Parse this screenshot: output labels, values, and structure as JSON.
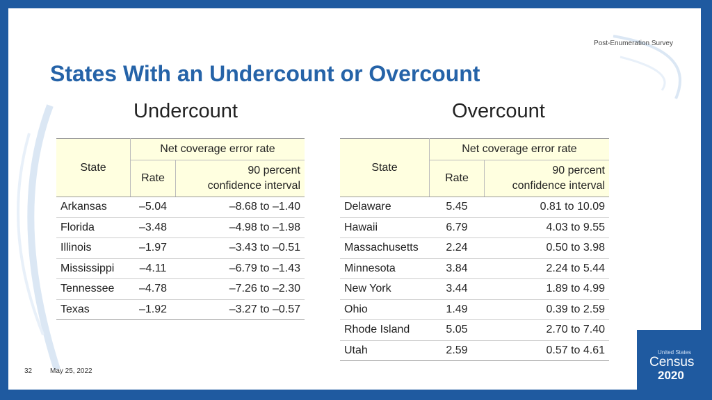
{
  "header": {
    "label": "Post-Enumeration   Survey"
  },
  "title": "States With an Undercount or Overcount",
  "undercount": {
    "section_title": "Undercount",
    "headers": {
      "state": "State",
      "group": "Net coverage error rate",
      "rate": "Rate",
      "ci_line1": "90 percent",
      "ci_line2": "confidence interval"
    },
    "rows": [
      {
        "state": "Arkansas",
        "rate": "–5.04",
        "ci": "–8.68 to –1.40"
      },
      {
        "state": "Florida",
        "rate": "–3.48",
        "ci": "–4.98 to –1.98"
      },
      {
        "state": "Illinois",
        "rate": "–1.97",
        "ci": "–3.43 to –0.51"
      },
      {
        "state": "Mississippi",
        "rate": "–4.11",
        "ci": "–6.79 to –1.43"
      },
      {
        "state": "Tennessee",
        "rate": "–4.78",
        "ci": "–7.26 to –2.30"
      },
      {
        "state": "Texas",
        "rate": "–1.92",
        "ci": "–3.27 to –0.57"
      }
    ]
  },
  "overcount": {
    "section_title": "Overcount",
    "headers": {
      "state": "State",
      "group": "Net coverage error rate",
      "rate": "Rate",
      "ci_line1": "90 percent",
      "ci_line2": "confidence interval"
    },
    "rows": [
      {
        "state": "Delaware",
        "rate": "5.45",
        "ci": "0.81 to 10.09"
      },
      {
        "state": "Hawaii",
        "rate": "6.79",
        "ci": "4.03 to 9.55"
      },
      {
        "state": "Massachusetts",
        "rate": "2.24",
        "ci": "0.50 to 3.98"
      },
      {
        "state": "Minnesota",
        "rate": "3.84",
        "ci": "2.24 to 5.44"
      },
      {
        "state": "New York",
        "rate": "3.44",
        "ci": "1.89 to 4.99"
      },
      {
        "state": "Ohio",
        "rate": "1.49",
        "ci": "0.39 to 2.59"
      },
      {
        "state": "Rhode Island",
        "rate": "5.05",
        "ci": "2.70 to 7.40"
      },
      {
        "state": "Utah",
        "rate": "2.59",
        "ci": "0.57 to 4.61"
      }
    ]
  },
  "footer": {
    "page_number": "32",
    "date": "May 25, 2022"
  },
  "logo": {
    "line1": "United States",
    "line2": "Census",
    "line3": "2020"
  },
  "colors": {
    "frame": "#1f5aa0",
    "title": "#2563a8",
    "header_fill": "#ffffe0"
  }
}
